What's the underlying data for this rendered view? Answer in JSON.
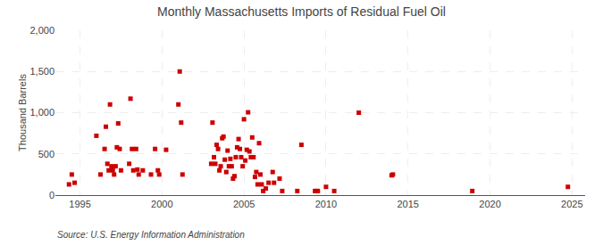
{
  "chart_data": {
    "type": "scatter",
    "title": "Monthly Massachusetts Imports of Residual Fuel Oil",
    "ylabel": "Thousand Barrels",
    "source": "Source: U.S. Energy Information Administration",
    "color": "#cc0000",
    "marker": "square",
    "grid": true,
    "xlim": [
      1993.5,
      2025.8
    ],
    "xticks": [
      1995,
      2000,
      2005,
      2010,
      2015,
      2020,
      2025
    ],
    "ylim": [
      0,
      2000
    ],
    "yticks": [
      0,
      500,
      {
        "value": 1000,
        "label": "1,000"
      },
      {
        "value": 1500,
        "label": "1,500"
      },
      {
        "value": 2000,
        "label": "2,000"
      }
    ],
    "x": [
      1994.33,
      1994.5,
      1994.67,
      1996.0,
      1996.25,
      1996.5,
      1996.58,
      1996.67,
      1996.75,
      1996.83,
      1996.92,
      1997.0,
      1997.08,
      1997.17,
      1997.25,
      1997.33,
      1997.42,
      1997.5,
      1998.0,
      1998.08,
      1998.17,
      1998.25,
      1998.42,
      1998.5,
      1998.58,
      1998.83,
      1999.33,
      1999.58,
      1999.75,
      1999.83,
      2000.25,
      2001.0,
      2001.08,
      2001.17,
      2001.25,
      2003.0,
      2003.08,
      2003.17,
      2003.25,
      2003.33,
      2003.42,
      2003.5,
      2003.58,
      2003.67,
      2003.75,
      2003.83,
      2003.92,
      2004.0,
      2004.08,
      2004.17,
      2004.25,
      2004.33,
      2004.42,
      2004.5,
      2004.58,
      2004.67,
      2004.75,
      2004.83,
      2004.92,
      2005.0,
      2005.08,
      2005.17,
      2005.25,
      2005.33,
      2005.42,
      2005.5,
      2005.58,
      2005.67,
      2005.75,
      2005.83,
      2005.92,
      2006.0,
      2006.08,
      2006.17,
      2006.33,
      2006.5,
      2006.75,
      2006.83,
      2007.17,
      2007.33,
      2008.25,
      2008.5,
      2009.33,
      2009.42,
      2009.5,
      2010.0,
      2010.5,
      2012.0,
      2014.0,
      2014.08,
      2018.92,
      2024.75
    ],
    "values": [
      130,
      250,
      150,
      720,
      250,
      560,
      830,
      380,
      300,
      1100,
      350,
      300,
      250,
      350,
      580,
      870,
      560,
      300,
      380,
      1170,
      560,
      300,
      560,
      310,
      250,
      300,
      250,
      560,
      300,
      250,
      550,
      1100,
      1500,
      880,
      250,
      380,
      880,
      460,
      380,
      610,
      560,
      300,
      350,
      690,
      710,
      430,
      280,
      540,
      350,
      440,
      350,
      200,
      230,
      460,
      580,
      680,
      560,
      460,
      350,
      920,
      420,
      550,
      1005,
      530,
      460,
      700,
      460,
      220,
      280,
      130,
      630,
      250,
      130,
      50,
      80,
      150,
      280,
      150,
      200,
      50,
      50,
      610,
      50,
      50,
      50,
      100,
      50,
      1000,
      240,
      250,
      50,
      100
    ]
  }
}
